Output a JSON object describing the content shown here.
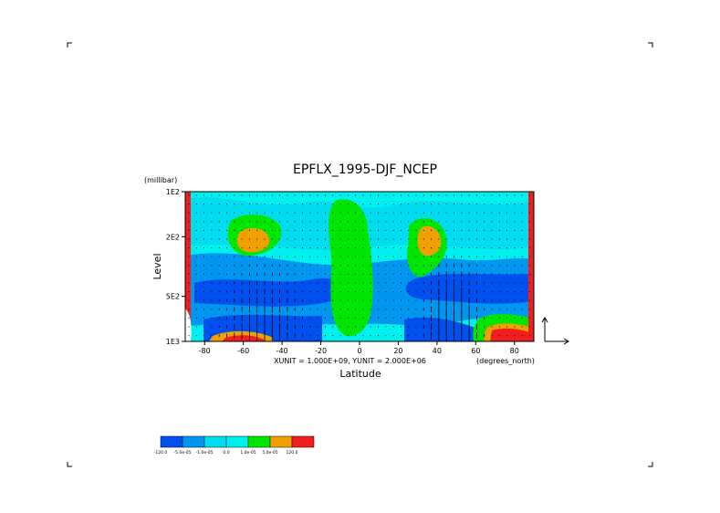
{
  "chart_data": {
    "type": "heatmap",
    "title": "EPFLX_1995-DJF_NCEP",
    "xlabel": "Latitude",
    "ylabel": "Level",
    "x_unit": "(degrees_north)",
    "y_unit": "(millibar)",
    "xlim": [
      -90,
      90
    ],
    "ylim": [
      1000,
      100
    ],
    "y_scale": "log",
    "x_ticks": [
      {
        "value": -80,
        "label": "-80"
      },
      {
        "value": -60,
        "label": "-60"
      },
      {
        "value": -40,
        "label": "-40"
      },
      {
        "value": -20,
        "label": "-20"
      },
      {
        "value": 0,
        "label": "0"
      },
      {
        "value": 20,
        "label": "20"
      },
      {
        "value": 40,
        "label": "40"
      },
      {
        "value": 60,
        "label": "60"
      },
      {
        "value": 80,
        "label": "80"
      }
    ],
    "y_ticks": [
      {
        "value": 100,
        "label": "1E2"
      },
      {
        "value": 200,
        "label": "2E2"
      },
      {
        "value": 500,
        "label": "5E2"
      },
      {
        "value": 1000,
        "label": "1E3"
      }
    ],
    "vector_units_label": "XUNIT = 1.000E+09, YUNIT = 2.000E+06",
    "levels": [
      {
        "label": "-120.0",
        "color": "#0050f0"
      },
      {
        "label": "-5.0e-05",
        "color": "#0096f0"
      },
      {
        "label": "-1.0e-05",
        "color": "#00dcf0"
      },
      {
        "label": "0.0",
        "color": "#00f0f0"
      },
      {
        "label": "1.0e-05",
        "color": "#00e600"
      },
      {
        "label": "5.0e-05",
        "color": "#f0a000"
      },
      {
        "label": "120.0",
        "color": "#f01e1e"
      }
    ],
    "colorbar_end_label": "",
    "grid": false,
    "legend_position": "bottom-left"
  }
}
